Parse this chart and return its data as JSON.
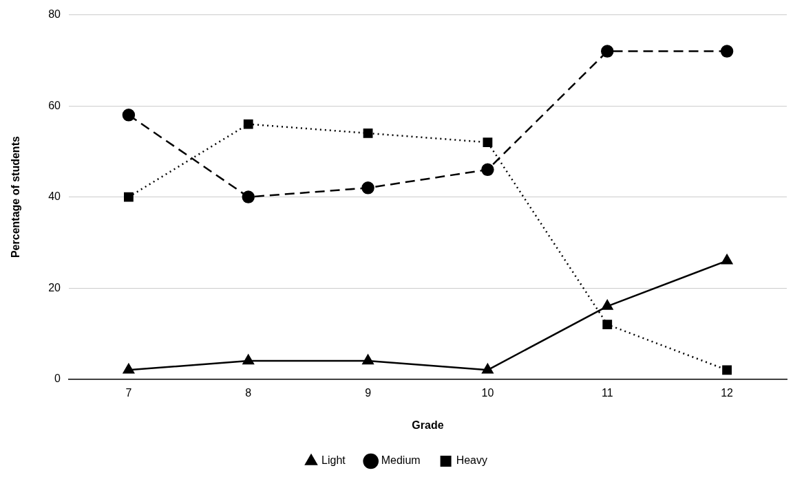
{
  "chart_data": {
    "type": "line",
    "xlabel": "Grade",
    "ylabel": "Percentage of students",
    "categories": [
      "7",
      "8",
      "9",
      "10",
      "11",
      "12"
    ],
    "series": [
      {
        "name": "Light",
        "color": "#000000",
        "marker": "triangle",
        "line_style": "solid",
        "values": [
          2,
          4,
          4,
          2,
          16,
          26
        ]
      },
      {
        "name": "Medium",
        "color": "#000000",
        "marker": "circle",
        "line_style": "dashed",
        "values": [
          58,
          40,
          42,
          46,
          72,
          72
        ]
      },
      {
        "name": "Heavy",
        "color": "#000000",
        "marker": "square",
        "line_style": "dotted",
        "values": [
          40,
          56,
          54,
          52,
          12,
          2
        ]
      }
    ],
    "ylim": [
      0,
      80
    ],
    "yticks": [
      0,
      20,
      40,
      60,
      80
    ],
    "grid": "y",
    "legend": "bottom"
  }
}
